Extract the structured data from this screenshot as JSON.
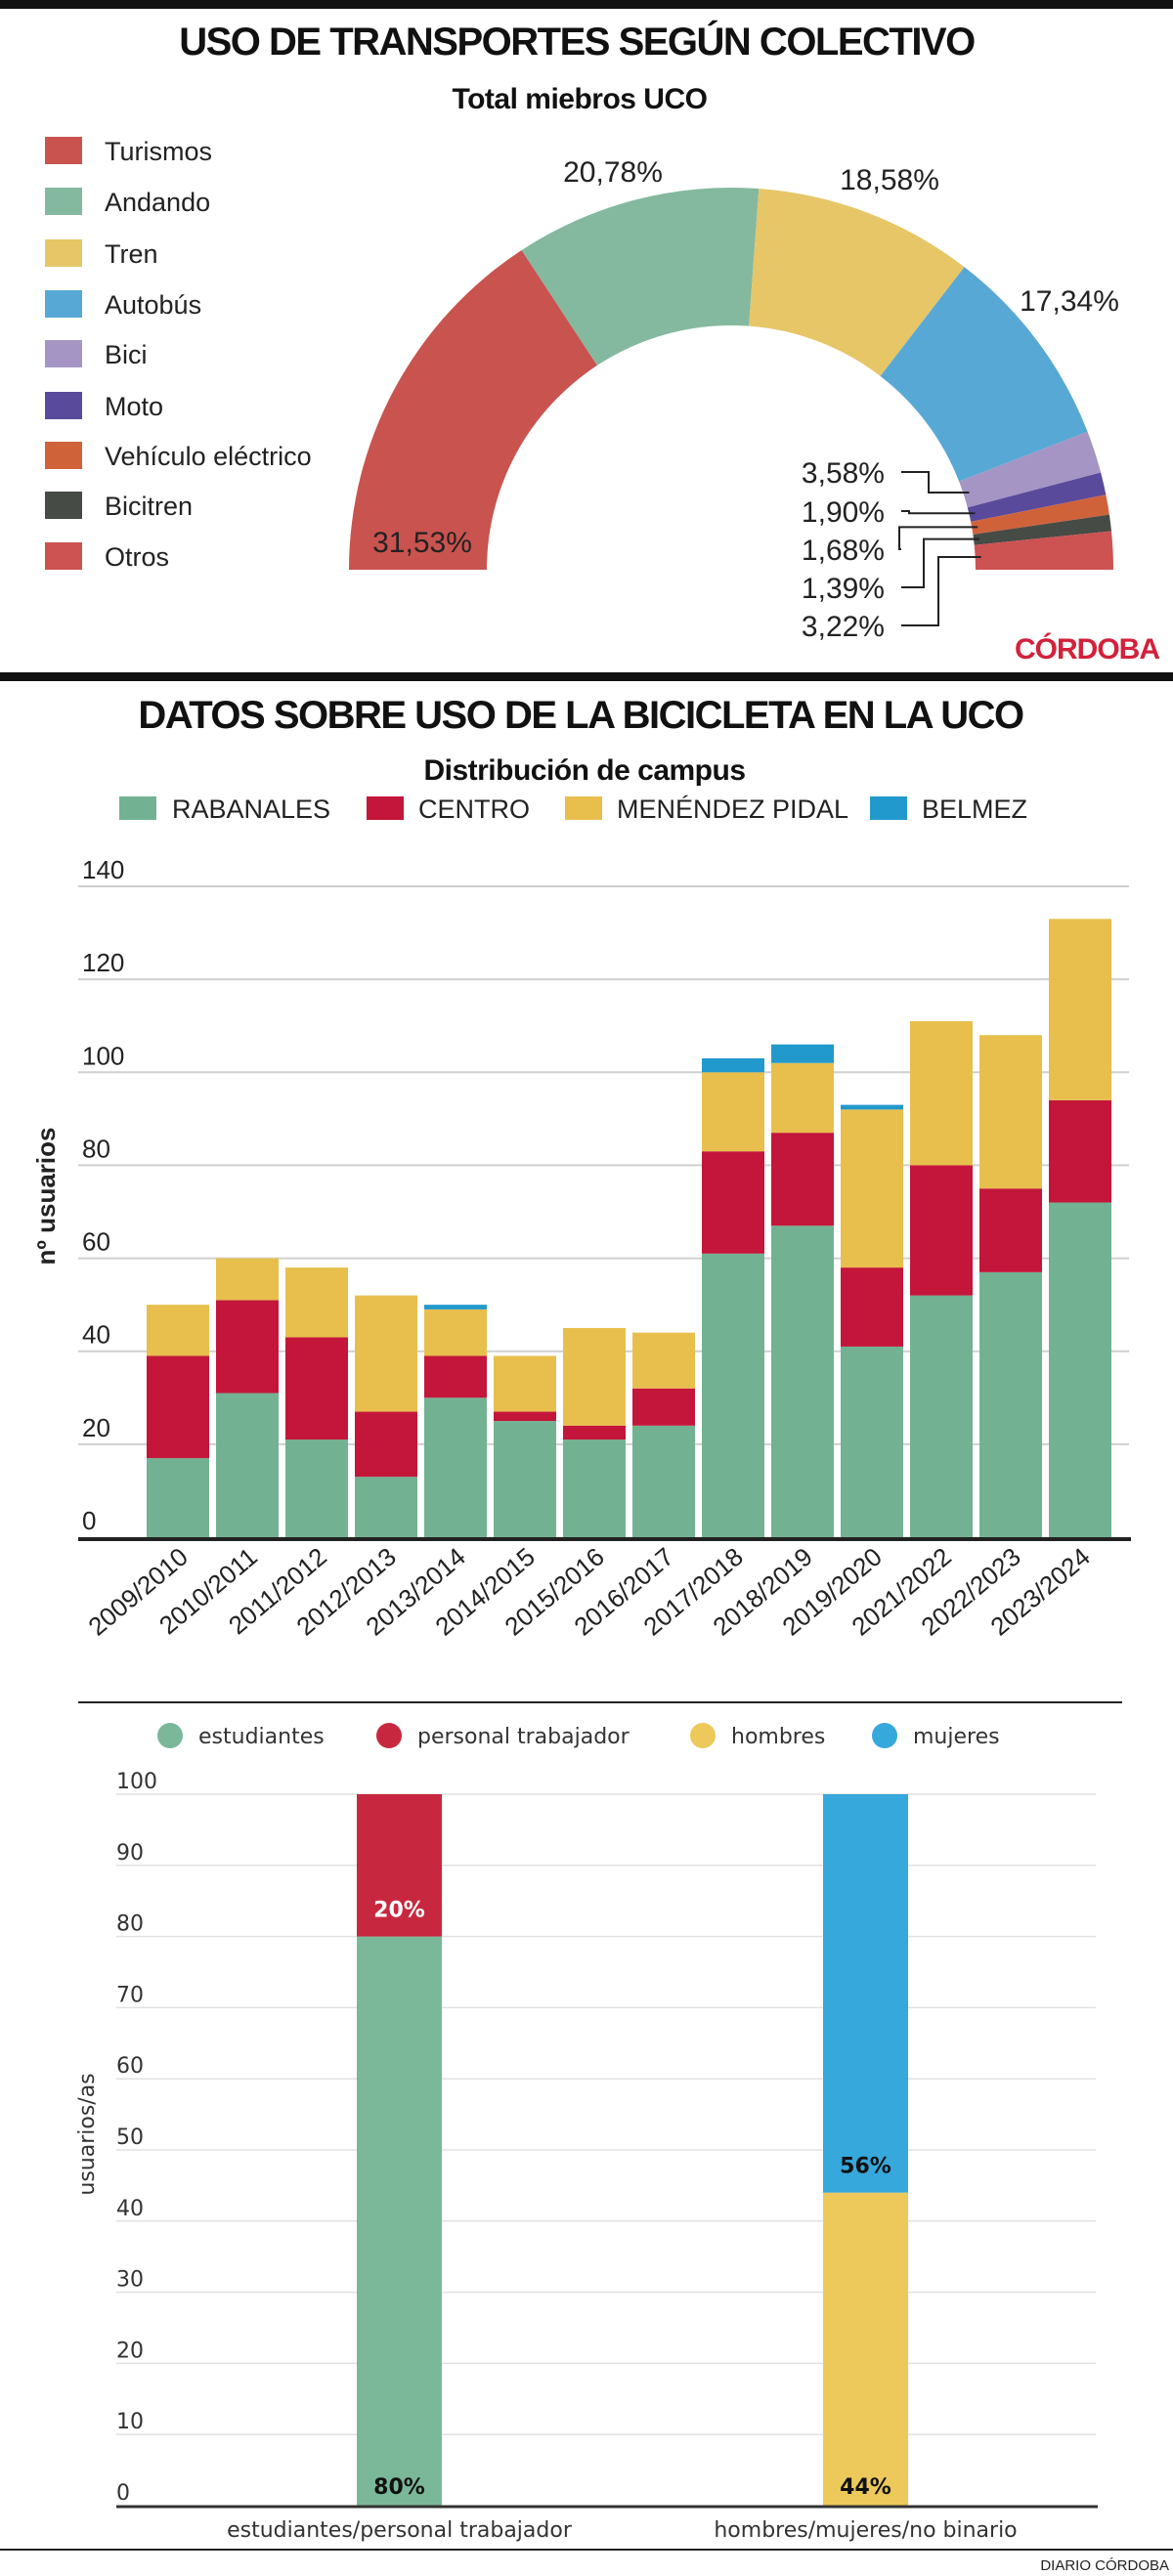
{
  "chart_data": [
    {
      "type": "pie",
      "variant": "half-donut",
      "title": "USO DE TRANSPORTES SEGÚN COLECTIVO",
      "subtitle": "Total miebros UCO",
      "legend_position": "left",
      "categories": [
        "Turismos",
        "Andando",
        "Tren",
        "Autobús",
        "Bici",
        "Moto",
        "Vehículo eléctrico",
        "Bicitren",
        "Otros"
      ],
      "values": [
        31.53,
        20.78,
        18.58,
        17.34,
        3.58,
        1.9,
        1.68,
        1.39,
        3.22
      ],
      "labels": [
        "31,53%",
        "20,78%",
        "18,58%",
        "17,34%",
        "3,58%",
        "1,90%",
        "1,68%",
        "1,39%",
        "3,22%"
      ],
      "colors": [
        "#c9534f",
        "#85b99f",
        "#e6c667",
        "#58a8d6",
        "#a595c4",
        "#5a4a9c",
        "#d0623a",
        "#464b46",
        "#cd5252"
      ]
    },
    {
      "type": "bar",
      "stacked": true,
      "title": "DATOS SOBRE USO DE LA BICICLETA EN LA UCO",
      "subtitle": "Distribución de campus",
      "ylabel": "nº usuarios",
      "ylim": [
        0,
        140
      ],
      "yticks": [
        0,
        20,
        40,
        60,
        80,
        100,
        120,
        140
      ],
      "grid": true,
      "legend_position": "top",
      "categories": [
        "2009/2010",
        "2010/2011",
        "2011/2012",
        "2012/2013",
        "2013/2014",
        "2014/2015",
        "2015/2016",
        "2016/2017",
        "2017/2018",
        "2018/2019",
        "2019/2020",
        "2021/2022",
        "2022/2023",
        "2023/2024"
      ],
      "series": [
        {
          "name": "RABANALES",
          "color": "#72b293",
          "values": [
            17,
            31,
            21,
            13,
            30,
            25,
            21,
            24,
            61,
            67,
            41,
            52,
            57,
            72
          ]
        },
        {
          "name": "CENTRO",
          "color": "#c3163a",
          "values": [
            22,
            20,
            22,
            14,
            9,
            2,
            3,
            8,
            22,
            20,
            17,
            28,
            18,
            22
          ]
        },
        {
          "name": "MENÉNDEZ PIDAL",
          "color": "#e8bf4d",
          "values": [
            11,
            9,
            15,
            25,
            10,
            12,
            21,
            12,
            17,
            15,
            34,
            31,
            33,
            39
          ]
        },
        {
          "name": "BELMEZ",
          "color": "#2299cc",
          "values": [
            0,
            0,
            0,
            0,
            1,
            0,
            0,
            0,
            3,
            4,
            1,
            0,
            0,
            0
          ]
        }
      ]
    },
    {
      "type": "bar",
      "stacked": true,
      "ylabel": "usuarios/as",
      "ylim": [
        0,
        100
      ],
      "yticks": [
        0,
        10,
        20,
        30,
        40,
        50,
        60,
        70,
        80,
        90,
        100
      ],
      "grid": true,
      "legend_position": "top",
      "legend": [
        {
          "name": "estudiantes",
          "color": "#7bb89a"
        },
        {
          "name": "personal trabajador",
          "color": "#c8283f"
        },
        {
          "name": "hombres",
          "color": "#ecc95a"
        },
        {
          "name": "mujeres",
          "color": "#36a8dc"
        }
      ],
      "categories": [
        "estudiantes/personal trabajador",
        "hombres/mujeres/no binario"
      ],
      "stacks": [
        [
          {
            "name": "estudiantes",
            "value": 80,
            "label": "80%",
            "color": "#7bb89a",
            "label_color": "#111"
          },
          {
            "name": "personal trabajador",
            "value": 20,
            "label": "20%",
            "color": "#c8283f",
            "label_color": "#fff"
          }
        ],
        [
          {
            "name": "hombres",
            "value": 44,
            "label": "44%",
            "color": "#ecc95a",
            "label_color": "#111"
          },
          {
            "name": "mujeres",
            "value": 56,
            "label": "56%",
            "color": "#36a8dc",
            "label_color": "#111"
          }
        ]
      ]
    }
  ],
  "logo": "CÓRDOBA",
  "credit": "DIARIO CÓRDOBA"
}
